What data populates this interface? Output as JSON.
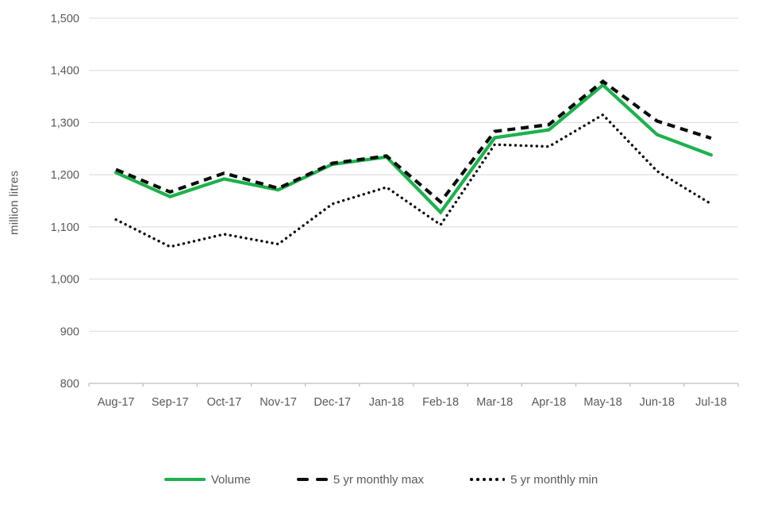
{
  "chart_data": {
    "type": "line",
    "title": "",
    "xlabel": "",
    "ylabel": "million litres",
    "categories": [
      "Aug-17",
      "Sep-17",
      "Oct-17",
      "Nov-17",
      "Dec-17",
      "Jan-18",
      "Feb-18",
      "Mar-18",
      "Apr-18",
      "May-18",
      "Jun-18",
      "Jul-18"
    ],
    "series": [
      {
        "name": "Volume",
        "style": "solid",
        "color": "#1cb24b",
        "values": [
          1204,
          1158,
          1192,
          1171,
          1220,
          1234,
          1128,
          1271,
          1286,
          1372,
          1277,
          1238
        ]
      },
      {
        "name": "5 yr monthly max",
        "style": "dashed",
        "color": "#0d0d0d",
        "values": [
          1210,
          1167,
          1203,
          1174,
          1222,
          1236,
          1148,
          1283,
          1296,
          1379,
          1303,
          1270
        ]
      },
      {
        "name": "5 yr monthly min",
        "style": "dotted",
        "color": "#0d0d0d",
        "values": [
          1114,
          1062,
          1086,
          1067,
          1144,
          1176,
          1104,
          1258,
          1254,
          1315,
          1207,
          1144
        ]
      }
    ],
    "ylim": [
      800,
      1500
    ],
    "ytick_step": 100,
    "ytick_labels": [
      "800",
      "900",
      "1,000",
      "1,100",
      "1,200",
      "1,300",
      "1,400",
      "1,500"
    ],
    "grid": true,
    "legend_position": "bottom"
  },
  "colors": {
    "volume_green": "#1cb24b",
    "series_black": "#0d0d0d",
    "gridline": "#d9d9d9",
    "axis": "#bfbfbf",
    "label_text": "#595959"
  }
}
